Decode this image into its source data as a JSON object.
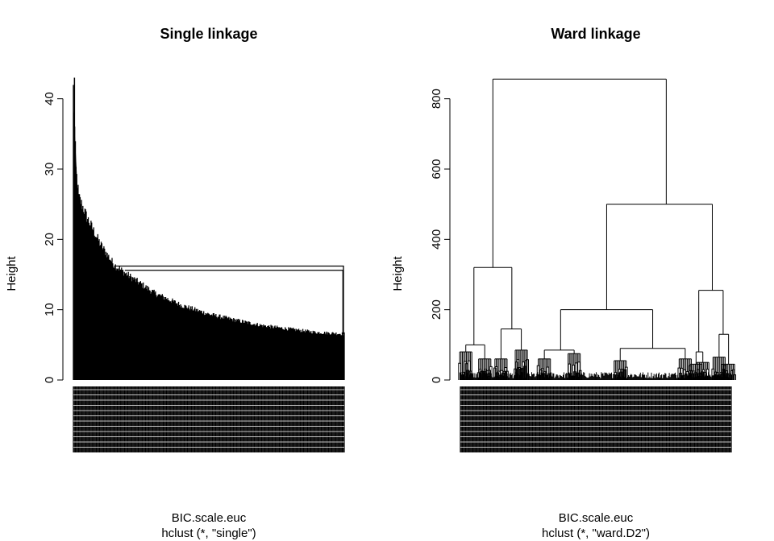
{
  "chart_data": [
    {
      "type": "dendrogram",
      "title": "Single linkage",
      "ylabel": "Height",
      "xlabel": "BIC.scale.euc",
      "sub": "hclust (*, \"single\")",
      "ylim": [
        0,
        45
      ],
      "yticks": [
        0,
        10,
        20,
        30,
        40
      ],
      "max_height": 43,
      "shape": "chaining",
      "merges": [
        {
          "height": 16.2,
          "left_leaf_fraction": 0.15,
          "right_leaf_fraction": 0.997
        },
        {
          "height": 15.6,
          "left_leaf_fraction": 0.19,
          "right_leaf_fraction": 0.995
        }
      ],
      "profile": [
        {
          "leaf_fraction": 0.0,
          "height": 43
        },
        {
          "leaf_fraction": 0.01,
          "height": 31
        },
        {
          "leaf_fraction": 0.02,
          "height": 27
        },
        {
          "leaf_fraction": 0.05,
          "height": 24
        },
        {
          "leaf_fraction": 0.1,
          "height": 20
        },
        {
          "leaf_fraction": 0.15,
          "height": 17
        },
        {
          "leaf_fraction": 0.2,
          "height": 15.5
        },
        {
          "leaf_fraction": 0.3,
          "height": 12.8
        },
        {
          "leaf_fraction": 0.4,
          "height": 11
        },
        {
          "leaf_fraction": 0.5,
          "height": 9.7
        },
        {
          "leaf_fraction": 0.6,
          "height": 8.8
        },
        {
          "leaf_fraction": 0.7,
          "height": 8.0
        },
        {
          "leaf_fraction": 0.8,
          "height": 7.5
        },
        {
          "leaf_fraction": 0.9,
          "height": 7.0
        },
        {
          "leaf_fraction": 1.0,
          "height": 6.8
        }
      ]
    },
    {
      "type": "dendrogram",
      "title": "Ward linkage",
      "ylabel": "Height",
      "xlabel": "BIC.scale.euc",
      "sub": "hclust (*, \"ward.D2\")",
      "ylim": [
        0,
        900
      ],
      "yticks": [
        0,
        200,
        400,
        600,
        800
      ],
      "max_height": 856,
      "shape": "balanced",
      "top_clusters": {
        "x": 0.5,
        "h": 856,
        "children": [
          {
            "x": 0.12,
            "h": 320,
            "children": [
              {
                "x": 0.05,
                "h": 100,
                "children": [
                  {
                    "x": 0.02,
                    "h": 80
                  },
                  {
                    "x": 0.09,
                    "h": 60
                  }
                ]
              },
              {
                "x": 0.19,
                "h": 145,
                "children": [
                  {
                    "x": 0.15,
                    "h": 60
                  },
                  {
                    "x": 0.225,
                    "h": 85
                  }
                ]
              }
            ]
          },
          {
            "x": 0.76,
            "h": 500,
            "children": [
              {
                "x": 0.54,
                "h": 200,
                "children": [
                  {
                    "x": 0.37,
                    "h": 85,
                    "children": [
                      {
                        "x": 0.31,
                        "h": 60
                      },
                      {
                        "x": 0.42,
                        "h": 75
                      }
                    ]
                  },
                  {
                    "x": 0.71,
                    "h": 90,
                    "children": [
                      {
                        "x": 0.59,
                        "h": 55
                      },
                      {
                        "x": 0.83,
                        "h": 60
                      }
                    ]
                  }
                ]
              },
              {
                "x": 0.93,
                "h": 255,
                "children": [
                  {
                    "x": 0.88,
                    "h": 80,
                    "children": [
                      {
                        "x": 0.87,
                        "h": 45
                      },
                      {
                        "x": 0.895,
                        "h": 50
                      }
                    ]
                  },
                  {
                    "x": 0.97,
                    "h": 130,
                    "children": [
                      {
                        "x": 0.955,
                        "h": 65
                      },
                      {
                        "x": 0.99,
                        "h": 45
                      }
                    ]
                  }
                ]
              }
            ]
          }
        ]
      }
    }
  ]
}
